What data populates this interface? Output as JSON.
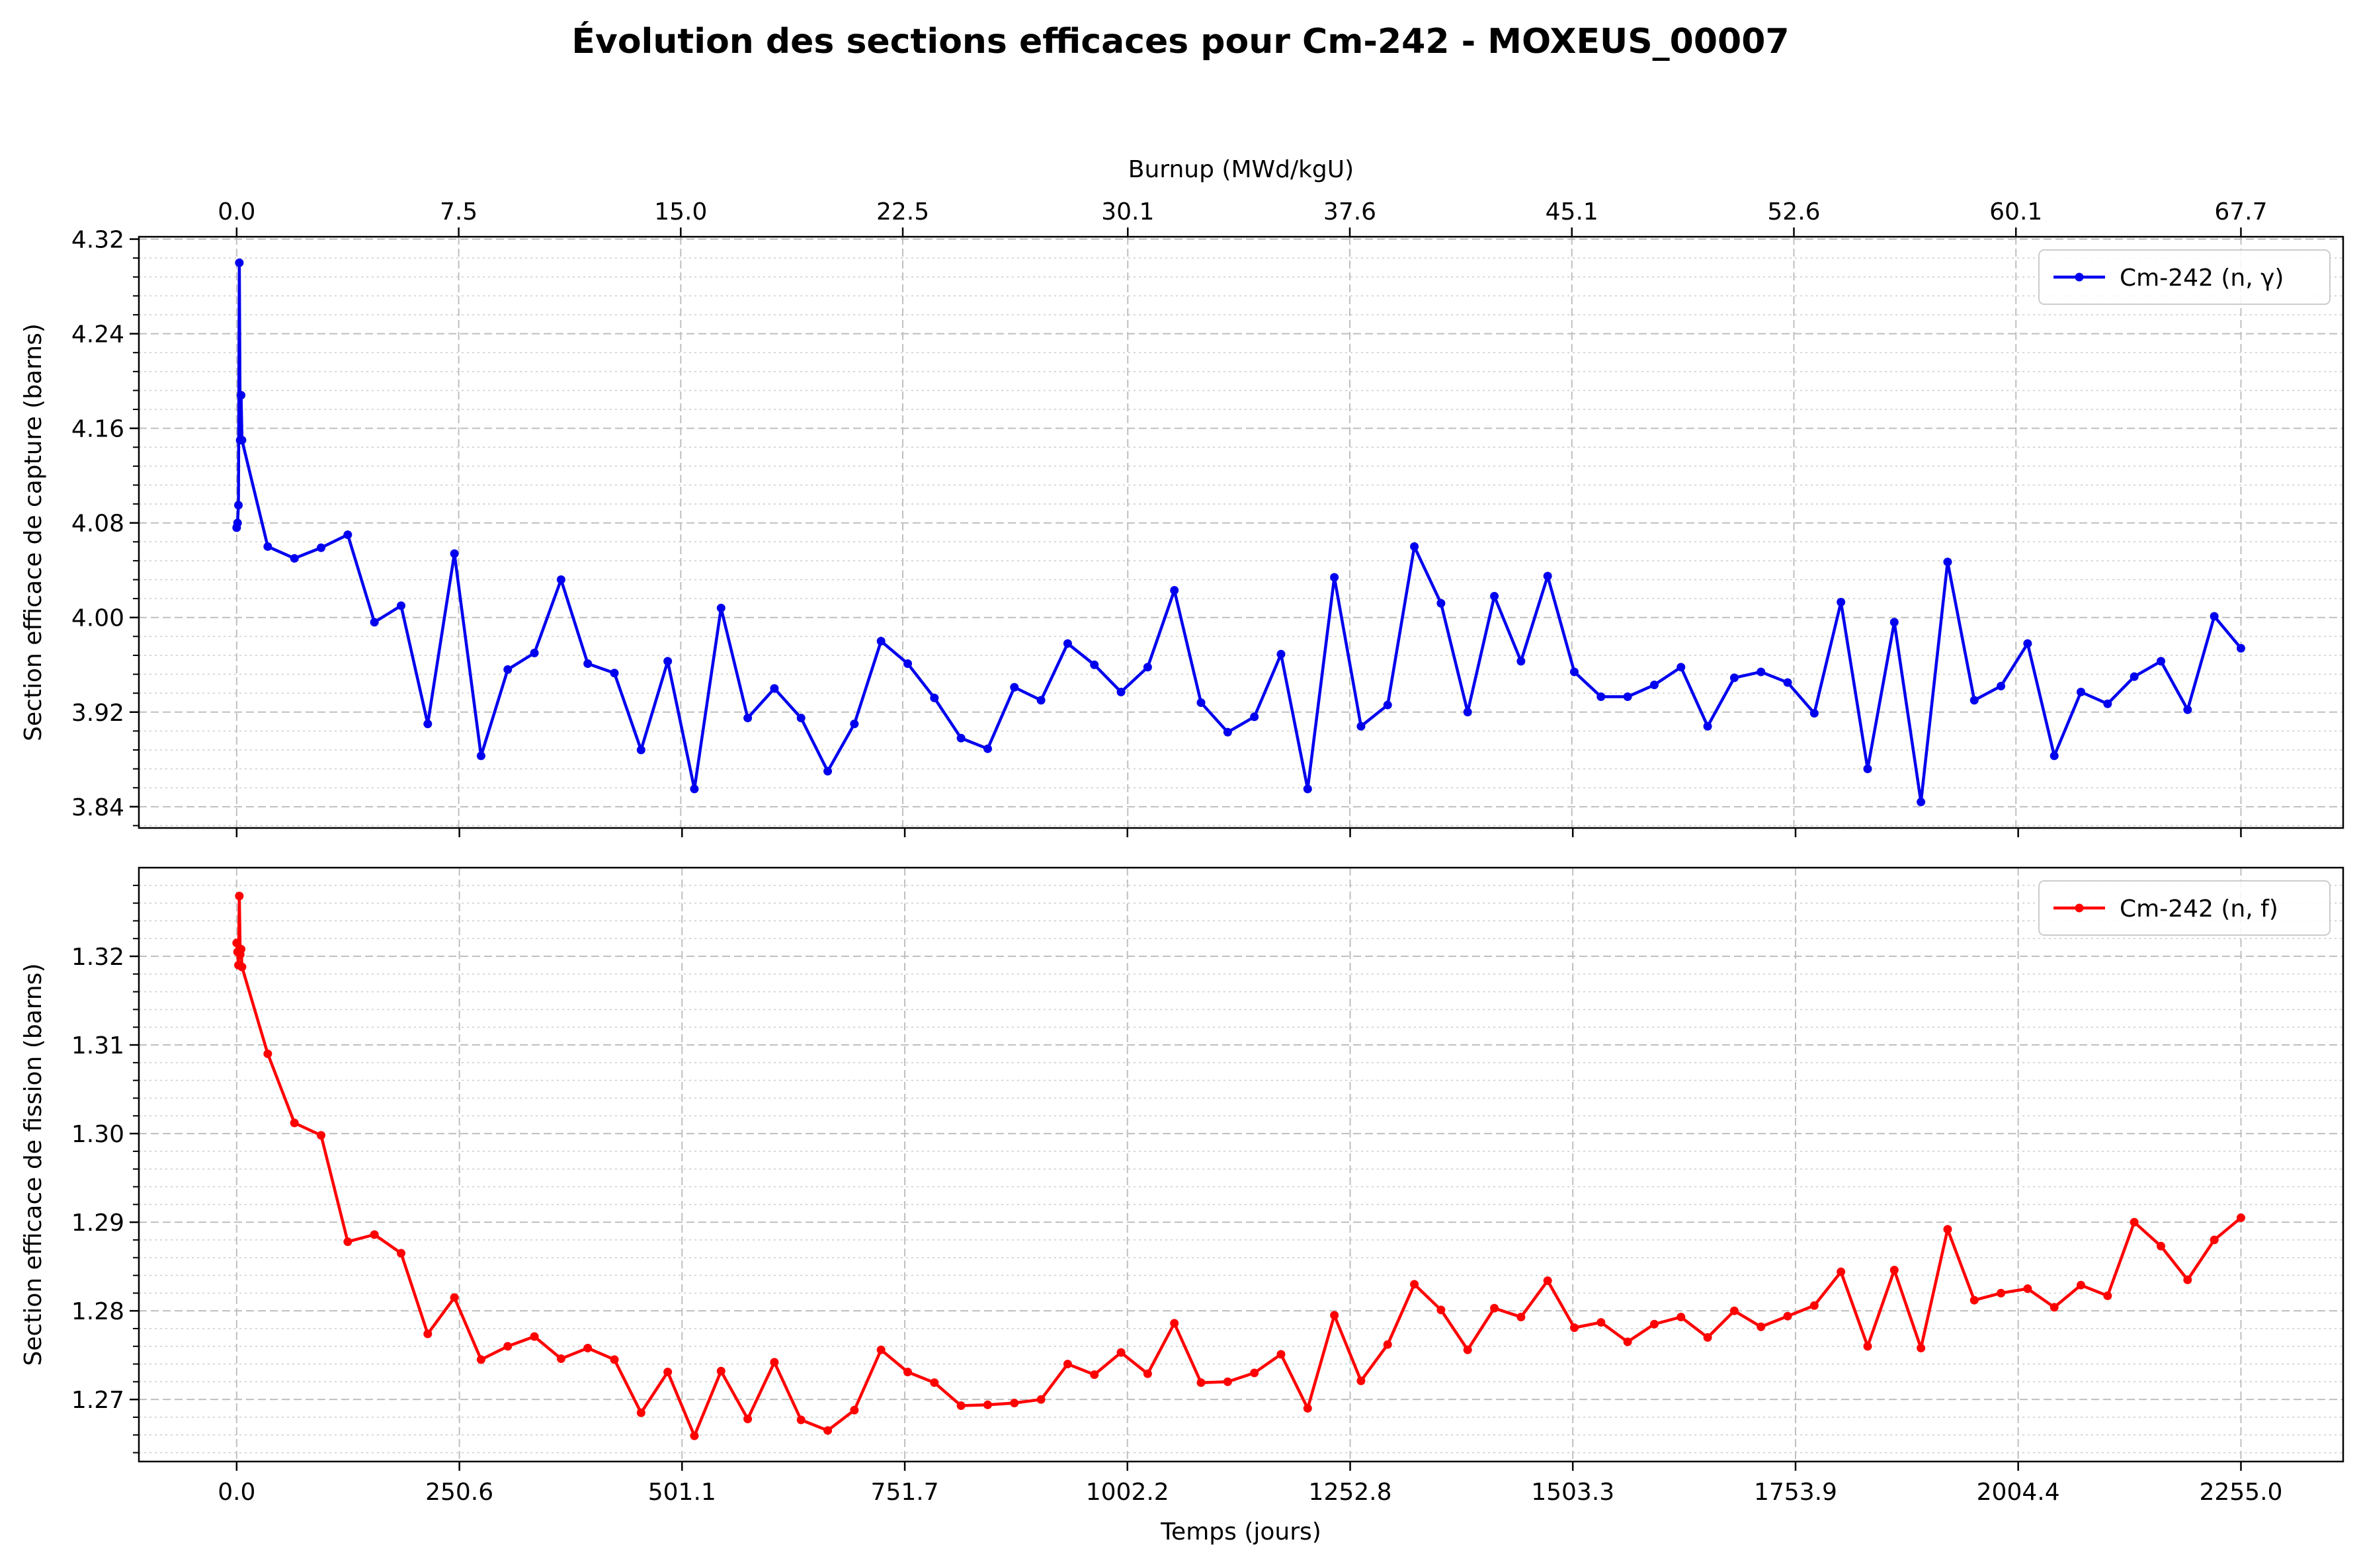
{
  "figure": {
    "title": "Évolution des sections efficaces pour Cm-242 - MOXEUS_00007"
  },
  "chart_data": [
    {
      "type": "line",
      "xlabel": "Temps (jours)",
      "ylabel": "Section efficace de capture (barns)",
      "top_xlabel": "Burnup (MWd/kgU)",
      "top_xticks": [
        0.0,
        7.5,
        15.0,
        22.5,
        30.1,
        37.6,
        45.1,
        52.6,
        60.1,
        67.7
      ],
      "top_xtick_labels": [
        "0.0",
        "7.5",
        "15.0",
        "22.5",
        "30.1",
        "37.6",
        "45.1",
        "52.6",
        "60.1",
        "67.7"
      ],
      "xlim": [
        -110,
        2370
      ],
      "ylim": [
        3.822,
        4.322
      ],
      "yticks": [
        3.84,
        3.92,
        4.0,
        4.08,
        4.16,
        4.24,
        4.32
      ],
      "ytick_labels": [
        "3.84",
        "3.92",
        "4.00",
        "4.08",
        "4.16",
        "4.24",
        "4.32"
      ],
      "grid": true,
      "legend_position": "top-right",
      "color": "#0000ee",
      "series": [
        {
          "name": "Cm-242 (n, γ)",
          "x": [
            0,
            1,
            2,
            3,
            4,
            5,
            6,
            35,
            65,
            95,
            125,
            155,
            185,
            215,
            245,
            275,
            305,
            335,
            365,
            395,
            425,
            455,
            485,
            515,
            545,
            575,
            605,
            635,
            665,
            695,
            725,
            755,
            785,
            815,
            845,
            875,
            905,
            935,
            965,
            995,
            1025,
            1055,
            1085,
            1115,
            1145,
            1175,
            1205,
            1235,
            1265,
            1295,
            1325,
            1355,
            1385,
            1415,
            1445,
            1475,
            1505,
            1535,
            1565,
            1595,
            1625,
            1655,
            1685,
            1715,
            1745,
            1775,
            1805,
            1835,
            1865,
            1895,
            1925,
            1955,
            1985,
            2015,
            2045,
            2075,
            2105,
            2135,
            2165,
            2195,
            2225,
            2255
          ],
          "values": [
            4.076,
            4.08,
            4.095,
            4.3,
            4.15,
            4.188,
            4.15,
            4.06,
            4.05,
            4.059,
            4.07,
            3.996,
            4.01,
            3.91,
            4.054,
            3.883,
            3.956,
            3.97,
            4.032,
            3.961,
            3.953,
            3.888,
            3.963,
            3.855,
            4.008,
            3.915,
            3.94,
            3.915,
            3.87,
            3.91,
            3.98,
            3.961,
            3.932,
            3.898,
            3.889,
            3.941,
            3.93,
            3.978,
            3.96,
            3.937,
            3.958,
            4.023,
            3.928,
            3.903,
            3.916,
            3.969,
            3.855,
            4.034,
            3.908,
            3.926,
            4.06,
            4.012,
            3.92,
            4.018,
            3.963,
            4.035,
            3.954,
            3.933,
            3.933,
            3.943,
            3.958,
            3.908,
            3.949,
            3.954,
            3.945,
            3.919,
            4.013,
            3.872,
            3.996,
            3.844,
            4.047,
            3.93,
            3.942,
            3.978,
            3.883,
            3.937,
            3.927,
            3.95,
            3.963,
            3.922,
            4.001,
            3.974
          ]
        }
      ]
    },
    {
      "type": "line",
      "xlabel": "Temps (jours)",
      "ylabel": "Section efficace de fission (barns)",
      "xlim": [
        -110,
        2370
      ],
      "xticks": [
        0.0,
        250.6,
        501.1,
        751.7,
        1002.2,
        1252.8,
        1503.3,
        1753.9,
        2004.4,
        2255.0
      ],
      "xtick_labels": [
        "0.0",
        "250.6",
        "501.1",
        "751.7",
        "1002.2",
        "1252.8",
        "1503.3",
        "1753.9",
        "2004.4",
        "2255.0"
      ],
      "ylim": [
        1.263,
        1.33
      ],
      "yticks": [
        1.27,
        1.28,
        1.29,
        1.3,
        1.31,
        1.32
      ],
      "ytick_labels": [
        "1.27",
        "1.28",
        "1.29",
        "1.30",
        "1.31",
        "1.32"
      ],
      "grid": true,
      "legend_position": "top-right",
      "color": "#ff0000",
      "series": [
        {
          "name": "Cm-242 (n, f)",
          "x": [
            0,
            1,
            2,
            3,
            4,
            5,
            6,
            35,
            65,
            95,
            125,
            155,
            185,
            215,
            245,
            275,
            305,
            335,
            365,
            395,
            425,
            455,
            485,
            515,
            545,
            575,
            605,
            635,
            665,
            695,
            725,
            755,
            785,
            815,
            845,
            875,
            905,
            935,
            965,
            995,
            1025,
            1055,
            1085,
            1115,
            1145,
            1175,
            1205,
            1235,
            1265,
            1295,
            1325,
            1355,
            1385,
            1415,
            1445,
            1475,
            1505,
            1535,
            1565,
            1595,
            1625,
            1655,
            1685,
            1715,
            1745,
            1775,
            1805,
            1835,
            1865,
            1895,
            1925,
            1955,
            1985,
            2015,
            2045,
            2075,
            2105,
            2135,
            2165,
            2195,
            2225,
            2255
          ],
          "values": [
            1.3215,
            1.3205,
            1.319,
            1.3268,
            1.3202,
            1.3208,
            1.3188,
            1.309,
            1.3012,
            1.2998,
            1.2878,
            1.2886,
            1.2865,
            1.2774,
            1.2815,
            1.2745,
            1.276,
            1.2771,
            1.2746,
            1.2758,
            1.2745,
            1.2685,
            1.2731,
            1.2659,
            1.2732,
            1.2678,
            1.2742,
            1.2677,
            1.2665,
            1.2688,
            1.2756,
            1.2731,
            1.2719,
            1.2693,
            1.2694,
            1.2696,
            1.27,
            1.274,
            1.2728,
            1.2753,
            1.2729,
            1.2786,
            1.2719,
            1.272,
            1.273,
            1.2751,
            1.269,
            1.2795,
            1.2721,
            1.2762,
            1.283,
            1.2801,
            1.2756,
            1.2803,
            1.2793,
            1.2834,
            1.2781,
            1.2787,
            1.2765,
            1.2785,
            1.2793,
            1.277,
            1.28,
            1.2782,
            1.2794,
            1.2806,
            1.2844,
            1.276,
            1.2846,
            1.2758,
            1.2892,
            1.2812,
            1.282,
            1.2825,
            1.2804,
            1.2829,
            1.2817,
            1.29,
            1.2873,
            1.2835,
            1.288,
            1.2905
          ]
        }
      ]
    }
  ]
}
